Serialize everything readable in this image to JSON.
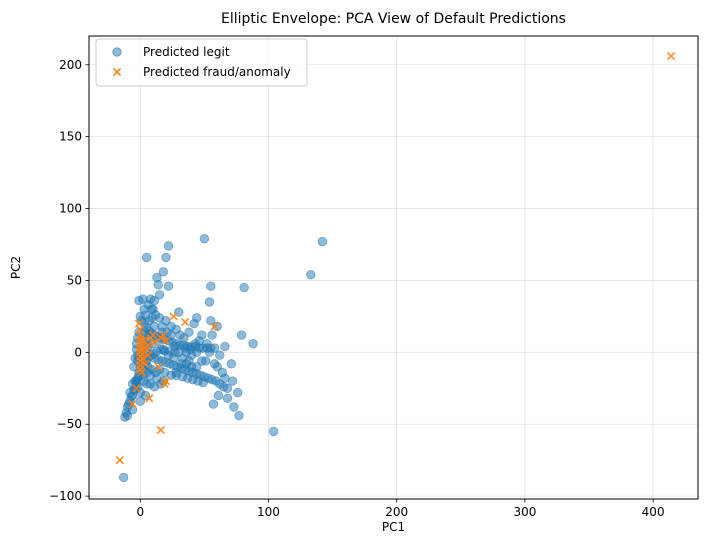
{
  "chart_data": {
    "type": "scatter",
    "title": "Elliptic Envelope: PCA View of Default Predictions",
    "xlabel": "PC1",
    "ylabel": "PC2",
    "xlim": [
      -40,
      435
    ],
    "ylim": [
      -102,
      220
    ],
    "xticks": [
      0,
      100,
      200,
      300,
      400
    ],
    "yticks": [
      -100,
      -50,
      0,
      50,
      100,
      150,
      200
    ],
    "xtick_labels": [
      "0",
      "100",
      "200",
      "300",
      "400"
    ],
    "ytick_labels": [
      "−100",
      "−50",
      "0",
      "50",
      "100",
      "150",
      "200"
    ],
    "grid": true,
    "legend_position": "upper-left",
    "series": [
      {
        "name": "Predicted legit",
        "marker": "circle",
        "color": "#1f77b4",
        "points": [
          [
            5,
            66
          ],
          [
            22,
            74
          ],
          [
            50,
            79
          ],
          [
            142,
            77
          ],
          [
            133,
            54
          ],
          [
            81,
            45
          ],
          [
            18,
            56
          ],
          [
            13,
            52
          ],
          [
            20,
            66
          ],
          [
            14,
            47
          ],
          [
            22,
            46
          ],
          [
            15,
            40
          ],
          [
            8,
            37
          ],
          [
            11,
            36
          ],
          [
            -1,
            36
          ],
          [
            2,
            37
          ],
          [
            6,
            33
          ],
          [
            3,
            30
          ],
          [
            10,
            30
          ],
          [
            30,
            28
          ],
          [
            55,
            46
          ],
          [
            54,
            35
          ],
          [
            44,
            24
          ],
          [
            55,
            22
          ],
          [
            60,
            18
          ],
          [
            56,
            12
          ],
          [
            62,
            -2
          ],
          [
            66,
            4
          ],
          [
            71,
            -8
          ],
          [
            79,
            12
          ],
          [
            88,
            6
          ],
          [
            72,
            -20
          ],
          [
            76,
            -28
          ],
          [
            68,
            -32
          ],
          [
            61,
            -30
          ],
          [
            73,
            -38
          ],
          [
            77,
            -44
          ],
          [
            57,
            -36
          ],
          [
            104,
            -55
          ],
          [
            0,
            25
          ],
          [
            1,
            22
          ],
          [
            3,
            20
          ],
          [
            5,
            17
          ],
          [
            7,
            15
          ],
          [
            9,
            13
          ],
          [
            11,
            12
          ],
          [
            13,
            11
          ],
          [
            16,
            10
          ],
          [
            19,
            9
          ],
          [
            22,
            8
          ],
          [
            25,
            7
          ],
          [
            28,
            6
          ],
          [
            31,
            5
          ],
          [
            34,
            5
          ],
          [
            37,
            4
          ],
          [
            40,
            4
          ],
          [
            43,
            4
          ],
          [
            46,
            3
          ],
          [
            49,
            3
          ],
          [
            52,
            3
          ],
          [
            55,
            3
          ],
          [
            58,
            3
          ],
          [
            5,
            0
          ],
          [
            8,
            -2
          ],
          [
            11,
            -4
          ],
          [
            14,
            -5
          ],
          [
            17,
            -6
          ],
          [
            20,
            -7
          ],
          [
            23,
            -8
          ],
          [
            26,
            -9
          ],
          [
            29,
            -10
          ],
          [
            32,
            -11
          ],
          [
            35,
            -12
          ],
          [
            38,
            -13
          ],
          [
            41,
            -14
          ],
          [
            44,
            -15
          ],
          [
            47,
            -16
          ],
          [
            50,
            -17
          ],
          [
            53,
            -18
          ],
          [
            56,
            -19
          ],
          [
            59,
            -20
          ],
          [
            62,
            -22
          ],
          [
            65,
            -24
          ],
          [
            68,
            -25
          ],
          [
            0,
            -10
          ],
          [
            -1,
            -14
          ],
          [
            -2,
            -18
          ],
          [
            -3,
            -22
          ],
          [
            -5,
            -26
          ],
          [
            -6,
            -30
          ],
          [
            -8,
            -34
          ],
          [
            -10,
            -38
          ],
          [
            -11,
            -42
          ],
          [
            -10,
            -44
          ],
          [
            -9,
            -36
          ],
          [
            -7,
            -31
          ],
          [
            -4,
            -26
          ],
          [
            -3,
            -20
          ],
          [
            -1,
            -16
          ],
          [
            2,
            -12
          ],
          [
            3,
            -20
          ],
          [
            5,
            -22
          ],
          [
            8,
            -22
          ],
          [
            11,
            -24
          ],
          [
            4,
            -30
          ],
          [
            0,
            -34
          ],
          [
            -6,
            -40
          ],
          [
            -8,
            -28
          ],
          [
            -1,
            14
          ],
          [
            -2,
            10
          ],
          [
            -3,
            6
          ],
          [
            -3,
            2
          ],
          [
            -2,
            -2
          ],
          [
            -2,
            -6
          ],
          [
            1,
            4
          ],
          [
            2,
            8
          ],
          [
            3,
            12
          ],
          [
            4,
            6
          ],
          [
            6,
            4
          ],
          [
            1,
            0
          ],
          [
            -1,
            -4
          ],
          [
            2,
            -6
          ],
          [
            4,
            -8
          ],
          [
            6,
            -10
          ],
          [
            9,
            -12
          ],
          [
            12,
            -14
          ],
          [
            15,
            -12
          ],
          [
            19,
            -14
          ],
          [
            24,
            -16
          ],
          [
            28,
            -16
          ],
          [
            33,
            -17
          ],
          [
            37,
            -18
          ],
          [
            41,
            -19
          ],
          [
            45,
            -20
          ],
          [
            49,
            -21
          ],
          [
            36,
            0
          ],
          [
            40,
            -2
          ],
          [
            43,
            6
          ],
          [
            46,
            8
          ],
          [
            48,
            12
          ],
          [
            42,
            20
          ],
          [
            38,
            14
          ],
          [
            34,
            10
          ],
          [
            28,
            16
          ],
          [
            24,
            18
          ],
          [
            20,
            22
          ],
          [
            17,
            18
          ],
          [
            14,
            8
          ],
          [
            18,
            2
          ],
          [
            22,
            -2
          ],
          [
            26,
            -4
          ],
          [
            30,
            0
          ],
          [
            33,
            -4
          ],
          [
            38,
            -6
          ],
          [
            52,
            6
          ],
          [
            54,
            0
          ],
          [
            51,
            -6
          ],
          [
            48,
            -6
          ],
          [
            12,
            26
          ],
          [
            9,
            24
          ],
          [
            7,
            22
          ],
          [
            4,
            26
          ],
          [
            15,
            24
          ],
          [
            24,
            12
          ],
          [
            9,
            30
          ],
          [
            4,
            14
          ],
          [
            -4,
            -4
          ],
          [
            -5,
            -10
          ],
          [
            1,
            -8
          ],
          [
            3,
            -4
          ],
          [
            5,
            -6
          ],
          [
            7,
            -3
          ],
          [
            10,
            -1
          ],
          [
            13,
            1
          ],
          [
            16,
            2
          ],
          [
            19,
            1
          ],
          [
            23,
            1
          ],
          [
            27,
            0
          ],
          [
            35,
            3
          ],
          [
            39,
            2
          ],
          [
            44,
            0
          ],
          [
            60,
            -10
          ],
          [
            64,
            -14
          ],
          [
            58,
            -8
          ],
          [
            66,
            -18
          ],
          [
            -2,
            -24
          ],
          [
            0,
            -28
          ],
          [
            -12,
            -45
          ],
          [
            -13,
            -87
          ],
          [
            -4,
            -20
          ],
          [
            -6,
            -22
          ],
          [
            2,
            -16
          ],
          [
            5,
            -14
          ],
          [
            8,
            -16
          ],
          [
            16,
            -22
          ],
          [
            18,
            -20
          ],
          [
            13,
            -18
          ],
          [
            28,
            -14
          ],
          [
            32,
            -8
          ],
          [
            36,
            -8
          ],
          [
            44,
            -10
          ],
          [
            40,
            -10
          ],
          [
            27,
            4
          ],
          [
            31,
            12
          ],
          [
            21,
            14
          ],
          [
            17,
            14
          ],
          [
            11,
            18
          ],
          [
            6,
            10
          ],
          [
            9,
            6
          ]
        ]
      },
      {
        "name": "Predicted fraud/anomaly",
        "marker": "x",
        "color": "#ff7f0e",
        "points": [
          [
            414,
            206
          ],
          [
            -16,
            -75
          ],
          [
            16,
            -54
          ],
          [
            -6,
            -36
          ],
          [
            7,
            -32
          ],
          [
            -3,
            -25
          ],
          [
            20,
            -20
          ],
          [
            19,
            -22
          ],
          [
            -1,
            20
          ],
          [
            0,
            16
          ],
          [
            0,
            12
          ],
          [
            0,
            9
          ],
          [
            0,
            6
          ],
          [
            0,
            3
          ],
          [
            0,
            0
          ],
          [
            0,
            -3
          ],
          [
            0,
            -6
          ],
          [
            0,
            -9
          ],
          [
            0,
            -12
          ],
          [
            1,
            -14
          ],
          [
            1,
            2
          ],
          [
            1,
            8
          ],
          [
            2,
            4
          ],
          [
            2,
            -4
          ],
          [
            3,
            0
          ],
          [
            3,
            8
          ],
          [
            4,
            -8
          ],
          [
            5,
            2
          ],
          [
            6,
            5
          ],
          [
            6,
            -2
          ],
          [
            8,
            10
          ],
          [
            10,
            12
          ],
          [
            11,
            7
          ],
          [
            14,
            -10
          ],
          [
            16,
            10
          ],
          [
            18,
            12
          ],
          [
            20,
            8
          ],
          [
            26,
            25
          ],
          [
            35,
            21
          ],
          [
            58,
            18
          ]
        ]
      }
    ]
  }
}
